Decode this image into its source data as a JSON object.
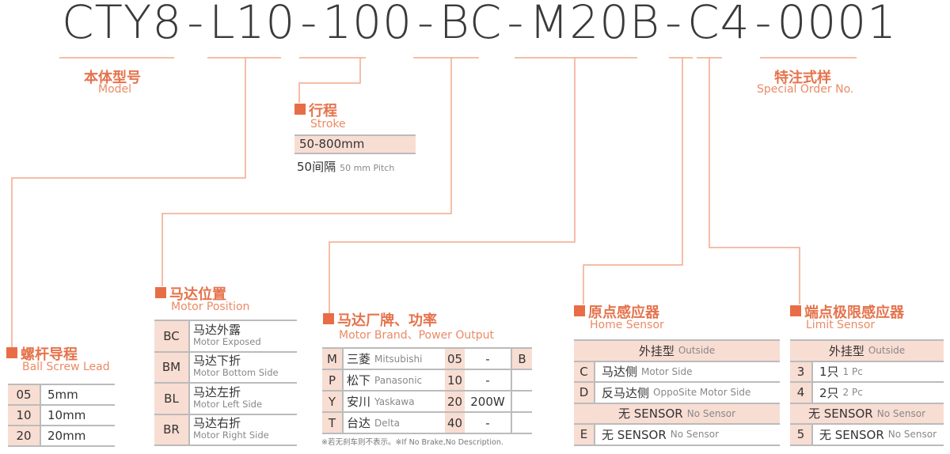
{
  "model_code": {
    "parts": [
      "CTY8",
      "L10",
      "100",
      "BC",
      "M20B",
      "C4",
      "0001"
    ],
    "separator": "-"
  },
  "colors": {
    "accent": "#e86d47",
    "fill": "#f8ddd3",
    "line": "#f2a98a"
  },
  "model": {
    "cn": "本体型号",
    "en": "Model"
  },
  "special": {
    "cn": "特注式样",
    "en": "Special Order No."
  },
  "stroke": {
    "cn": "行程",
    "en": "Stroke",
    "range": "50-800mm",
    "pitch_cn": "50间隔",
    "pitch_en": "50 mm Pitch"
  },
  "lead": {
    "cn": "螺杆导程",
    "en": "Ball Screw Lead",
    "rows": [
      [
        "05",
        "5mm"
      ],
      [
        "10",
        "10mm"
      ],
      [
        "20",
        "20mm"
      ]
    ]
  },
  "position": {
    "cn": "马达位置",
    "en": "Motor Position",
    "rows": [
      [
        "BC",
        "马达外露",
        "Motor Exposed"
      ],
      [
        "BM",
        "马达下折",
        "Motor Bottom Side"
      ],
      [
        "BL",
        "马达左折",
        "Motor Left Side"
      ],
      [
        "BR",
        "马达右折",
        "Motor Right Side"
      ]
    ]
  },
  "brand": {
    "cn": "马达厂牌、功率",
    "en": "Motor Brand、Power Output",
    "rows": [
      [
        "M",
        "三菱",
        "Mitsubishi",
        "05",
        "-",
        "B"
      ],
      [
        "P",
        "松下",
        "Panasonic",
        "10",
        "-",
        ""
      ],
      [
        "Y",
        "安川",
        "Yaskawa",
        "20",
        "200W",
        ""
      ],
      [
        "T",
        "台达",
        "Delta",
        "40",
        "-",
        ""
      ]
    ],
    "note": "※若无刹车则不表示。※If No Brake,No Description."
  },
  "home": {
    "cn": "原点感应器",
    "en": "Home Sensor",
    "rows": [
      [
        "",
        "外挂型",
        "Outside"
      ],
      [
        "C",
        "马达侧",
        "Motor Side"
      ],
      [
        "D",
        "反马达侧",
        "OppoSite Motor Side"
      ],
      [
        "",
        "无 SENSOR",
        "No Sensor"
      ],
      [
        "E",
        "无 SENSOR",
        "No Sensor"
      ]
    ]
  },
  "limit": {
    "cn": "端点极限感应器",
    "en": "Limit Sensor",
    "rows": [
      [
        "",
        "外挂型",
        "Outside"
      ],
      [
        "3",
        "1只",
        "1 Pc"
      ],
      [
        "4",
        "2只",
        "2 Pc"
      ],
      [
        "",
        "无 SENSOR",
        "No Sensor"
      ],
      [
        "5",
        "无 SENSOR",
        "No Sensor"
      ]
    ]
  }
}
